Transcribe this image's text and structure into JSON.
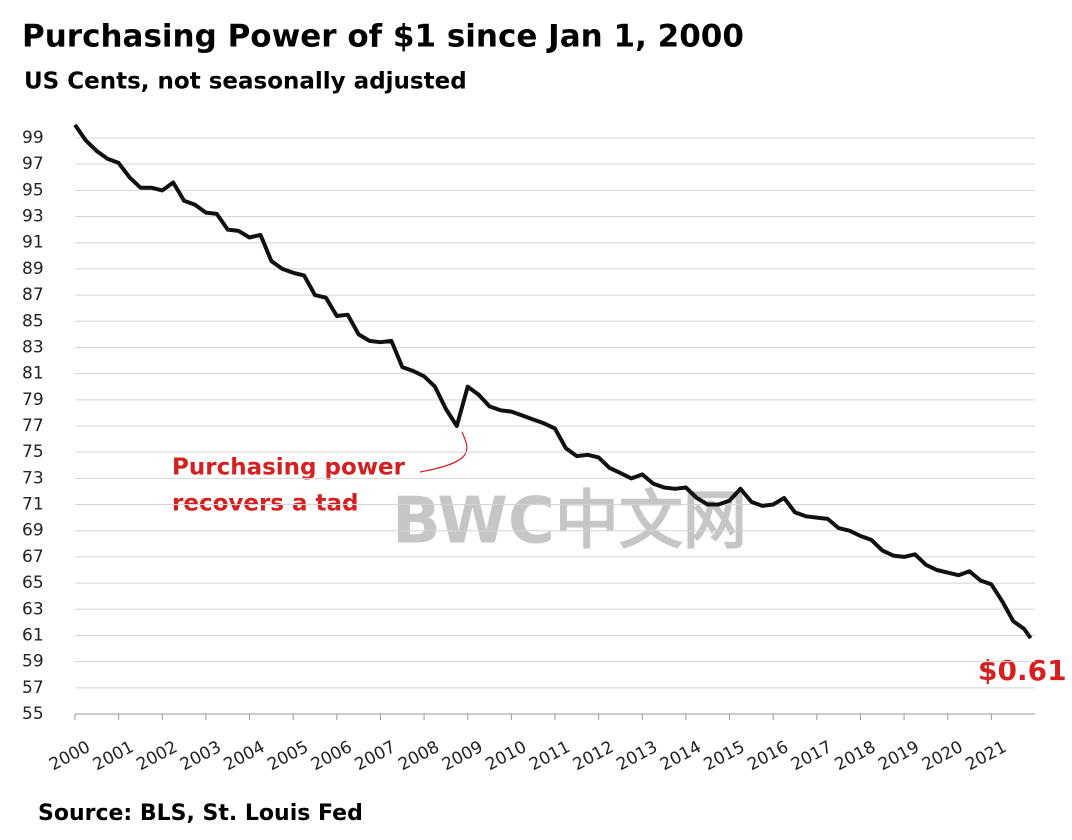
{
  "chart_data": {
    "type": "line",
    "title": "Purchasing  Power of $1 since Jan 1, 2000",
    "subtitle": "US Cents, not seasonally adjusted",
    "source": "Source: BLS, St. Louis Fed",
    "annotation": [
      "Purchasing power",
      "recovers a tad"
    ],
    "end_label": "$0.61",
    "watermark": "BWC中文网",
    "x": [
      2000,
      2000.25,
      2000.5,
      2000.75,
      2001,
      2001.25,
      2001.5,
      2001.75,
      2002,
      2002.25,
      2002.5,
      2002.75,
      2003,
      2003.25,
      2003.5,
      2003.75,
      2004,
      2004.25,
      2004.5,
      2004.75,
      2005,
      2005.25,
      2005.5,
      2005.75,
      2006,
      2006.25,
      2006.5,
      2006.75,
      2007,
      2007.25,
      2007.5,
      2007.75,
      2008,
      2008.25,
      2008.5,
      2008.75,
      2009,
      2009.25,
      2009.5,
      2009.75,
      2010,
      2010.25,
      2010.5,
      2010.75,
      2011,
      2011.25,
      2011.5,
      2011.75,
      2012,
      2012.25,
      2012.5,
      2012.75,
      2013,
      2013.25,
      2013.5,
      2013.75,
      2014,
      2014.25,
      2014.5,
      2014.75,
      2015,
      2015.25,
      2015.5,
      2015.75,
      2016,
      2016.25,
      2016.5,
      2016.75,
      2017,
      2017.25,
      2017.5,
      2017.75,
      2018,
      2018.25,
      2018.5,
      2018.75,
      2019,
      2019.25,
      2019.5,
      2019.75,
      2020,
      2020.25,
      2020.5,
      2020.75,
      2021,
      2021.25,
      2021.5,
      2021.75,
      2021.9
    ],
    "series": [
      {
        "name": "Purchasing power",
        "color": "#111111",
        "values": [
          100,
          98.8,
          98.0,
          97.4,
          97.1,
          96.0,
          95.2,
          95.2,
          95.0,
          95.6,
          94.2,
          93.9,
          93.3,
          93.2,
          92.0,
          91.9,
          91.4,
          91.6,
          89.6,
          89.0,
          88.7,
          88.5,
          87.0,
          86.8,
          85.4,
          85.5,
          84.0,
          83.5,
          83.4,
          83.5,
          81.5,
          81.2,
          80.8,
          80.0,
          78.3,
          77.0,
          80.0,
          79.4,
          78.5,
          78.2,
          78.1,
          77.8,
          77.5,
          77.2,
          76.8,
          75.3,
          74.7,
          74.8,
          74.6,
          73.8,
          73.4,
          73.0,
          73.3,
          72.6,
          72.3,
          72.2,
          72.3,
          71.5,
          71.0,
          71.0,
          71.3,
          72.2,
          71.2,
          70.9,
          71.0,
          71.5,
          70.4,
          70.1,
          70.0,
          69.9,
          69.2,
          69.0,
          68.6,
          68.3,
          67.5,
          67.1,
          67.0,
          67.2,
          66.4,
          66.0,
          65.8,
          65.6,
          65.9,
          65.2,
          64.9,
          63.6,
          62.1,
          61.5,
          60.8
        ]
      }
    ],
    "xlim": [
      2000,
      2022
    ],
    "xticks": [
      2000,
      2001,
      2002,
      2003,
      2004,
      2005,
      2006,
      2007,
      2008,
      2009,
      2010,
      2011,
      2012,
      2013,
      2014,
      2015,
      2016,
      2017,
      2018,
      2019,
      2020,
      2021
    ],
    "ylim": [
      55,
      100
    ],
    "yticks": [
      55,
      57,
      59,
      61,
      63,
      65,
      67,
      69,
      71,
      73,
      75,
      77,
      79,
      81,
      83,
      85,
      87,
      89,
      91,
      93,
      95,
      97,
      99
    ],
    "grid": true
  }
}
